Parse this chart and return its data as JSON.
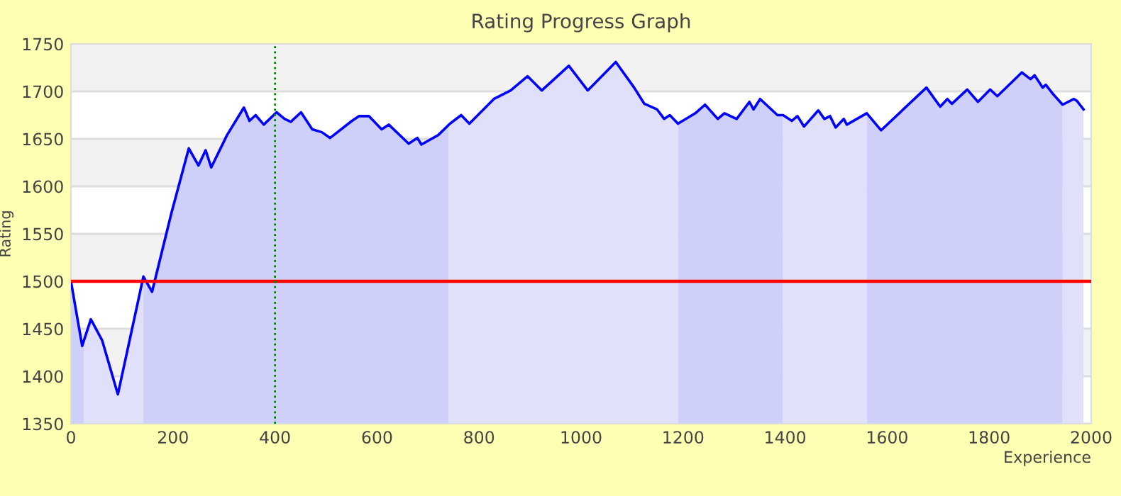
{
  "chart_data": {
    "type": "area",
    "title": "Rating Progress Graph",
    "xlabel": "Experience",
    "ylabel": "Rating",
    "series": [
      {
        "color": "#cfd0fa",
        "x": [
          0,
          22,
          25
        ],
        "values": [
          1500,
          1432,
          1437
        ]
      },
      {
        "color": "#e0e0fa",
        "x": [
          25,
          39,
          61,
          92,
          142
        ],
        "values": [
          1437,
          1460,
          1438,
          1381,
          1505
        ]
      },
      {
        "color": "#cfd0fa",
        "x": [
          142,
          159,
          197,
          231,
          250,
          264,
          275,
          306,
          339,
          350,
          362,
          378,
          403,
          419,
          431,
          451,
          473,
          492,
          508,
          551,
          565,
          584,
          609,
          623,
          662,
          679,
          687,
          720,
          740
        ],
        "values": [
          1505,
          1489,
          1572,
          1640,
          1622,
          1638,
          1620,
          1654,
          1683,
          1669,
          1675,
          1665,
          1678,
          1671,
          1668,
          1678,
          1660,
          1657,
          1651,
          1669,
          1674,
          1674,
          1660,
          1665,
          1645,
          1651,
          1644,
          1654,
          1664
        ]
      },
      {
        "color": "#e0e0fa",
        "x": [
          740,
          743,
          765,
          781,
          829,
          862,
          895,
          923,
          976,
          1013,
          1068,
          1104,
          1124,
          1149,
          1163,
          1174,
          1190
        ],
        "values": [
          1664,
          1666,
          1675,
          1666,
          1692,
          1701,
          1716,
          1701,
          1727,
          1701,
          1731,
          1704,
          1687,
          1681,
          1671,
          1675,
          1666
        ]
      },
      {
        "color": "#cfd0fa",
        "x": [
          1190,
          1224,
          1243,
          1268,
          1281,
          1305,
          1330,
          1338,
          1351,
          1385,
          1396
        ],
        "values": [
          1666,
          1677,
          1686,
          1671,
          1677,
          1671,
          1689,
          1681,
          1692,
          1675,
          1675
        ]
      },
      {
        "color": "#e0e0fa",
        "x": [
          1396,
          1413,
          1424,
          1437,
          1465,
          1477,
          1488,
          1499,
          1515,
          1521,
          1560
        ],
        "values": [
          1675,
          1669,
          1674,
          1663,
          1680,
          1671,
          1674,
          1662,
          1671,
          1665,
          1677
        ]
      },
      {
        "color": "#cfd0fa",
        "x": [
          1560,
          1588,
          1677,
          1704,
          1718,
          1727,
          1757,
          1778,
          1802,
          1816,
          1864,
          1881,
          1889,
          1905,
          1911,
          1924,
          1944
        ],
        "values": [
          1677,
          1659,
          1704,
          1684,
          1692,
          1687,
          1702,
          1689,
          1702,
          1695,
          1720,
          1713,
          1717,
          1704,
          1707,
          1698,
          1686
        ]
      },
      {
        "color": "#e0e0fa",
        "x": [
          1944,
          1966,
          1972,
          1985
        ],
        "values": [
          1686,
          1692,
          1690,
          1681
        ]
      },
      {
        "type": "line",
        "color": "#0000ff",
        "x": [
          0,
          22,
          39,
          61,
          92,
          142,
          159,
          197,
          231,
          250,
          264,
          275,
          306,
          339,
          350,
          362,
          378,
          403,
          419,
          431,
          451,
          473,
          492,
          508,
          551,
          565,
          584,
          609,
          623,
          662,
          679,
          687,
          720,
          743,
          765,
          781,
          829,
          862,
          895,
          923,
          976,
          1013,
          1068,
          1104,
          1124,
          1149,
          1163,
          1174,
          1190,
          1224,
          1243,
          1268,
          1281,
          1305,
          1330,
          1338,
          1351,
          1385,
          1396,
          1413,
          1424,
          1437,
          1465,
          1477,
          1488,
          1499,
          1515,
          1521,
          1560,
          1588,
          1677,
          1704,
          1718,
          1727,
          1757,
          1778,
          1802,
          1816,
          1864,
          1881,
          1889,
          1905,
          1911,
          1924,
          1944,
          1966,
          1972,
          1985
        ],
        "values": [
          1500,
          1432,
          1460,
          1438,
          1381,
          1505,
          1489,
          1572,
          1640,
          1622,
          1638,
          1620,
          1654,
          1683,
          1669,
          1675,
          1665,
          1678,
          1671,
          1668,
          1678,
          1660,
          1657,
          1651,
          1669,
          1674,
          1674,
          1660,
          1665,
          1645,
          1651,
          1644,
          1654,
          1666,
          1675,
          1666,
          1692,
          1701,
          1716,
          1701,
          1727,
          1701,
          1731,
          1704,
          1687,
          1681,
          1671,
          1675,
          1666,
          1677,
          1686,
          1671,
          1677,
          1671,
          1689,
          1681,
          1692,
          1675,
          1675,
          1669,
          1674,
          1663,
          1680,
          1671,
          1674,
          1662,
          1671,
          1665,
          1677,
          1659,
          1704,
          1684,
          1692,
          1687,
          1702,
          1689,
          1702,
          1695,
          1720,
          1713,
          1717,
          1704,
          1707,
          1698,
          1686,
          1692,
          1690,
          1681
        ]
      }
    ],
    "ref_lines": [
      {
        "axis": "y",
        "value": 1500,
        "color": "#ff0000",
        "line_style": "solid"
      },
      {
        "axis": "x",
        "value": 400,
        "color": "#008000",
        "line_style": "dotted"
      }
    ],
    "xlim": [
      0,
      2000
    ],
    "ylim": [
      1350,
      1750
    ],
    "xticks": [
      0,
      200,
      400,
      600,
      800,
      1000,
      1200,
      1400,
      1600,
      1800,
      2000
    ],
    "yticks": [
      1350,
      1400,
      1450,
      1500,
      1550,
      1600,
      1650,
      1700,
      1750
    ],
    "grid": "y"
  }
}
